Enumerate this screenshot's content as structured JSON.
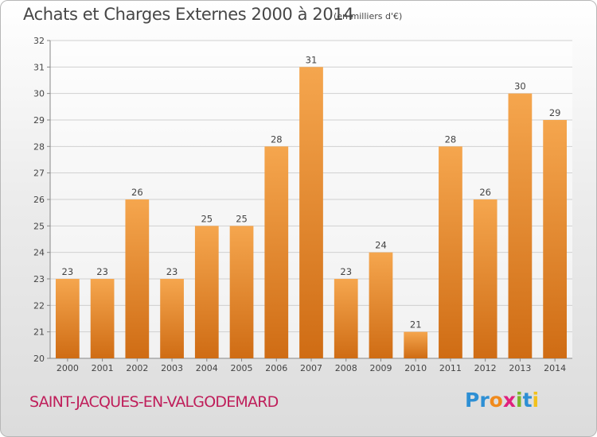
{
  "header": {
    "title": "Achats et Charges Externes 2000 à 2014",
    "unit": "(en milliers d'€)"
  },
  "footer": {
    "commune": "SAINT-JACQUES-EN-VALGODEMARD",
    "logo": {
      "text": "Proxiti",
      "letter_colors": [
        "#2d8fd4",
        "#2d8fd4",
        "#f08a1c",
        "#e0217e",
        "#7bb52a",
        "#2d8fd4",
        "#f2c11c"
      ]
    }
  },
  "colors": {
    "bar_light": "#f5a64e",
    "bar_dark": "#cf6c14",
    "grid": "#d0d0d0",
    "axis": "#888888",
    "label": "#444444",
    "title": "#474747",
    "commune": "#bf1e5a"
  },
  "chart_data": {
    "type": "bar",
    "title": "Achats et Charges Externes 2000 à 2014",
    "subtitle": "(en milliers d'€)",
    "xlabel": "",
    "ylabel": "",
    "categories": [
      "2000",
      "2001",
      "2002",
      "2003",
      "2004",
      "2005",
      "2006",
      "2007",
      "2008",
      "2009",
      "2010",
      "2011",
      "2012",
      "2013",
      "2014"
    ],
    "values": [
      23,
      23,
      26,
      23,
      25,
      25,
      28,
      31,
      23,
      24,
      21,
      28,
      26,
      30,
      29
    ],
    "ylim": [
      20,
      32
    ],
    "yticks": [
      20,
      21,
      22,
      23,
      24,
      25,
      26,
      27,
      28,
      29,
      30,
      31,
      32
    ],
    "grid": true,
    "legend": "none"
  }
}
